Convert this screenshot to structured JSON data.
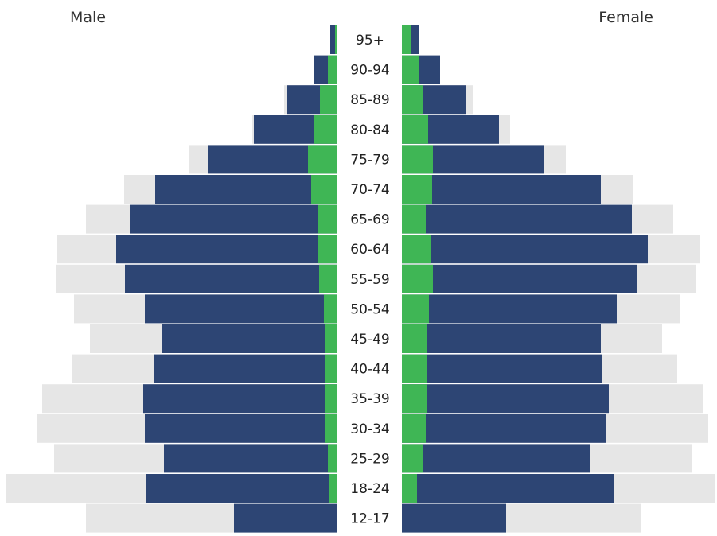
{
  "chart_data": {
    "type": "bar",
    "orientation": "horizontal-population-pyramid",
    "left_title": "Male",
    "right_title": "Female",
    "categories": [
      "95+",
      "90-94",
      "85-89",
      "80-84",
      "75-79",
      "70-74",
      "65-69",
      "60-64",
      "55-59",
      "50-54",
      "45-49",
      "40-44",
      "35-39",
      "30-34",
      "25-29",
      "18-24",
      "12-17"
    ],
    "male": {
      "gray": [
        0,
        30,
        67,
        107,
        186,
        268,
        316,
        352,
        354,
        331,
        311,
        333,
        371,
        378,
        356,
        416,
        316
      ],
      "blue": [
        9,
        30,
        63,
        105,
        163,
        229,
        261,
        278,
        267,
        242,
        221,
        230,
        244,
        242,
        218,
        240,
        130
      ],
      "green": [
        3,
        12,
        22,
        30,
        37,
        33,
        25,
        25,
        23,
        17,
        16,
        16,
        15,
        15,
        12,
        10,
        0
      ]
    },
    "female": {
      "gray": [
        0,
        21,
        90,
        136,
        206,
        290,
        341,
        375,
        370,
        349,
        327,
        346,
        378,
        385,
        364,
        393,
        301
      ],
      "blue": [
        21,
        48,
        81,
        122,
        179,
        250,
        289,
        309,
        296,
        270,
        250,
        252,
        260,
        256,
        236,
        267,
        131
      ],
      "green": [
        11,
        21,
        27,
        33,
        39,
        38,
        30,
        36,
        39,
        34,
        32,
        32,
        31,
        30,
        27,
        19,
        0
      ]
    },
    "colors": {
      "gray": "#e6e6e6",
      "blue": "#2d4574",
      "green": "#3fb655"
    },
    "grid": false,
    "legend": "none"
  }
}
